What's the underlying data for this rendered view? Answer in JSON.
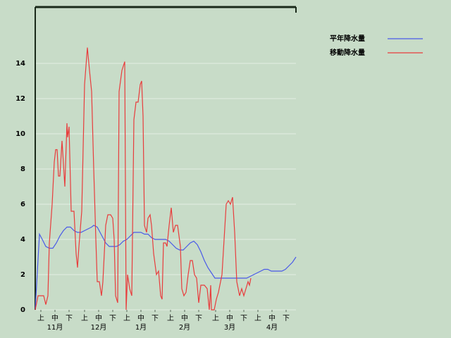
{
  "chart_data": {
    "type": "line",
    "xlim": [
      0,
      185
    ],
    "ylim": [
      0,
      17.2
    ],
    "yticks": [
      0,
      2,
      4,
      6,
      8,
      10,
      12,
      14
    ],
    "grid": true,
    "legend": "top-right",
    "xticks": [
      {
        "value": 4,
        "label": "上"
      },
      {
        "value": 14,
        "label": "中"
      },
      {
        "value": 24,
        "label": "下"
      },
      {
        "value": 35,
        "label": "上"
      },
      {
        "value": 45,
        "label": "中"
      },
      {
        "value": 55,
        "label": "下"
      },
      {
        "value": 65,
        "label": "上"
      },
      {
        "value": 75,
        "label": "中"
      },
      {
        "value": 85,
        "label": "下"
      },
      {
        "value": 96,
        "label": "上"
      },
      {
        "value": 106,
        "label": "中"
      },
      {
        "value": 116,
        "label": "下"
      },
      {
        "value": 128,
        "label": "上"
      },
      {
        "value": 138,
        "label": "中"
      },
      {
        "value": 148,
        "label": "下"
      },
      {
        "value": 158,
        "label": "上"
      },
      {
        "value": 168,
        "label": "中"
      },
      {
        "value": 178,
        "label": "下"
      }
    ],
    "month_ticks": [
      {
        "value": 14,
        "label": "11月"
      },
      {
        "value": 45,
        "label": "12月"
      },
      {
        "value": 75,
        "label": "1月"
      },
      {
        "value": 106,
        "label": "2月"
      },
      {
        "value": 138,
        "label": "3月"
      },
      {
        "value": 168,
        "label": "4月"
      }
    ],
    "series": [
      {
        "name": "平年降水量",
        "color": "#4a5ae8",
        "x": [
          0,
          3,
          5,
          7.5,
          10,
          12.5,
          15,
          17.5,
          20,
          22.5,
          25,
          27.5,
          30,
          32.5,
          35,
          37.5,
          40,
          41.5,
          44,
          46,
          48,
          50,
          52.5,
          55,
          57.5,
          60,
          62.5,
          65,
          67.5,
          70,
          72.5,
          75,
          77.5,
          80,
          82.5,
          85,
          87.5,
          90,
          92.5,
          95,
          97.5,
          100,
          102.5,
          105,
          107.5,
          110,
          112.5,
          115,
          117.5,
          120,
          122.5,
          125,
          127.5,
          130,
          135,
          140,
          145,
          150,
          152.5,
          155,
          157.5,
          160,
          162.5,
          165,
          167.5,
          170,
          172.5,
          175,
          177.5,
          180,
          182.5,
          185
        ],
        "values": [
          0,
          4.3,
          4,
          3.6,
          3.5,
          3.5,
          3.8,
          4.2,
          4.5,
          4.7,
          4.7,
          4.5,
          4.4,
          4.4,
          4.5,
          4.6,
          4.7,
          4.8,
          4.7,
          4.4,
          4.1,
          3.8,
          3.6,
          3.6,
          3.6,
          3.7,
          3.9,
          4,
          4.2,
          4.4,
          4.4,
          4.4,
          4.3,
          4.3,
          4.1,
          4,
          4,
          4,
          4,
          3.9,
          3.7,
          3.5,
          3.4,
          3.4,
          3.6,
          3.8,
          3.9,
          3.7,
          3.3,
          2.8,
          2.4,
          2.1,
          1.8,
          1.8,
          1.8,
          1.8,
          1.8,
          1.8,
          1.9,
          2,
          2.1,
          2.2,
          2.3,
          2.3,
          2.2,
          2.2,
          2.2,
          2.2,
          2.3,
          2.5,
          2.7,
          3
        ]
      },
      {
        "name": "移動降水量",
        "color": "#e83c3c",
        "x": [
          0,
          2,
          6,
          7.5,
          9,
          10,
          12,
          13.5,
          14.5,
          15.5,
          16.5,
          17.5,
          19,
          21,
          22.5,
          23,
          24,
          25.5,
          27.5,
          29,
          30,
          31,
          33,
          35,
          37,
          38.5,
          40,
          41.5,
          43,
          44,
          45.5,
          47,
          48,
          50,
          51.5,
          53.5,
          55,
          56,
          57,
          58.5,
          59.5,
          61.5,
          63.5,
          64.5,
          65.5,
          67,
          68.5,
          70,
          71.5,
          73,
          74.5,
          75.5,
          76.5,
          77.5,
          79,
          80,
          81.5,
          82.5,
          84,
          86,
          87.5,
          89,
          90,
          91,
          92.5,
          93.5,
          95,
          96.5,
          98,
          99.5,
          101,
          103,
          104,
          105.5,
          107,
          108.5,
          110,
          111.5,
          113,
          114.5,
          116,
          117.5,
          120,
          122,
          123.5,
          124.5,
          125,
          127,
          128.5,
          130,
          131.5,
          132.5,
          134,
          135.5,
          137,
          138.5,
          140,
          141.5,
          143,
          145,
          146.5,
          148,
          149.5,
          151,
          152,
          153
        ],
        "values": [
          0,
          0.8,
          0.8,
          0.3,
          0.8,
          3.8,
          6,
          8.4,
          9.1,
          9.1,
          7.6,
          7.6,
          9.6,
          7,
          10.6,
          9.8,
          10.4,
          5.6,
          5.6,
          3.2,
          2.4,
          3.6,
          5.6,
          12.8,
          14.9,
          13.6,
          12.4,
          8,
          4,
          1.6,
          1.6,
          0.8,
          1.6,
          4.8,
          5.4,
          5.4,
          5.2,
          4,
          0.8,
          0.4,
          12.4,
          13.6,
          14.1,
          0,
          2,
          1.2,
          0.8,
          10.8,
          11.8,
          11.8,
          12.8,
          13,
          11,
          4.8,
          4.4,
          5.2,
          5.4,
          4.8,
          3.2,
          2,
          2.2,
          0.8,
          0.6,
          3.8,
          3.8,
          3.6,
          4.8,
          5.8,
          4.4,
          4.8,
          4.8,
          3.6,
          1.2,
          0.8,
          1,
          2,
          2.8,
          2.8,
          2,
          1.8,
          0.4,
          1.4,
          1.4,
          1.2,
          0,
          1.4,
          0,
          0,
          0.6,
          1,
          1.6,
          2,
          4,
          6,
          6.2,
          6,
          6.4,
          4.4,
          1.6,
          0.8,
          1.2,
          0.8,
          1.2,
          1.6,
          1.4,
          1.8
        ]
      }
    ]
  }
}
